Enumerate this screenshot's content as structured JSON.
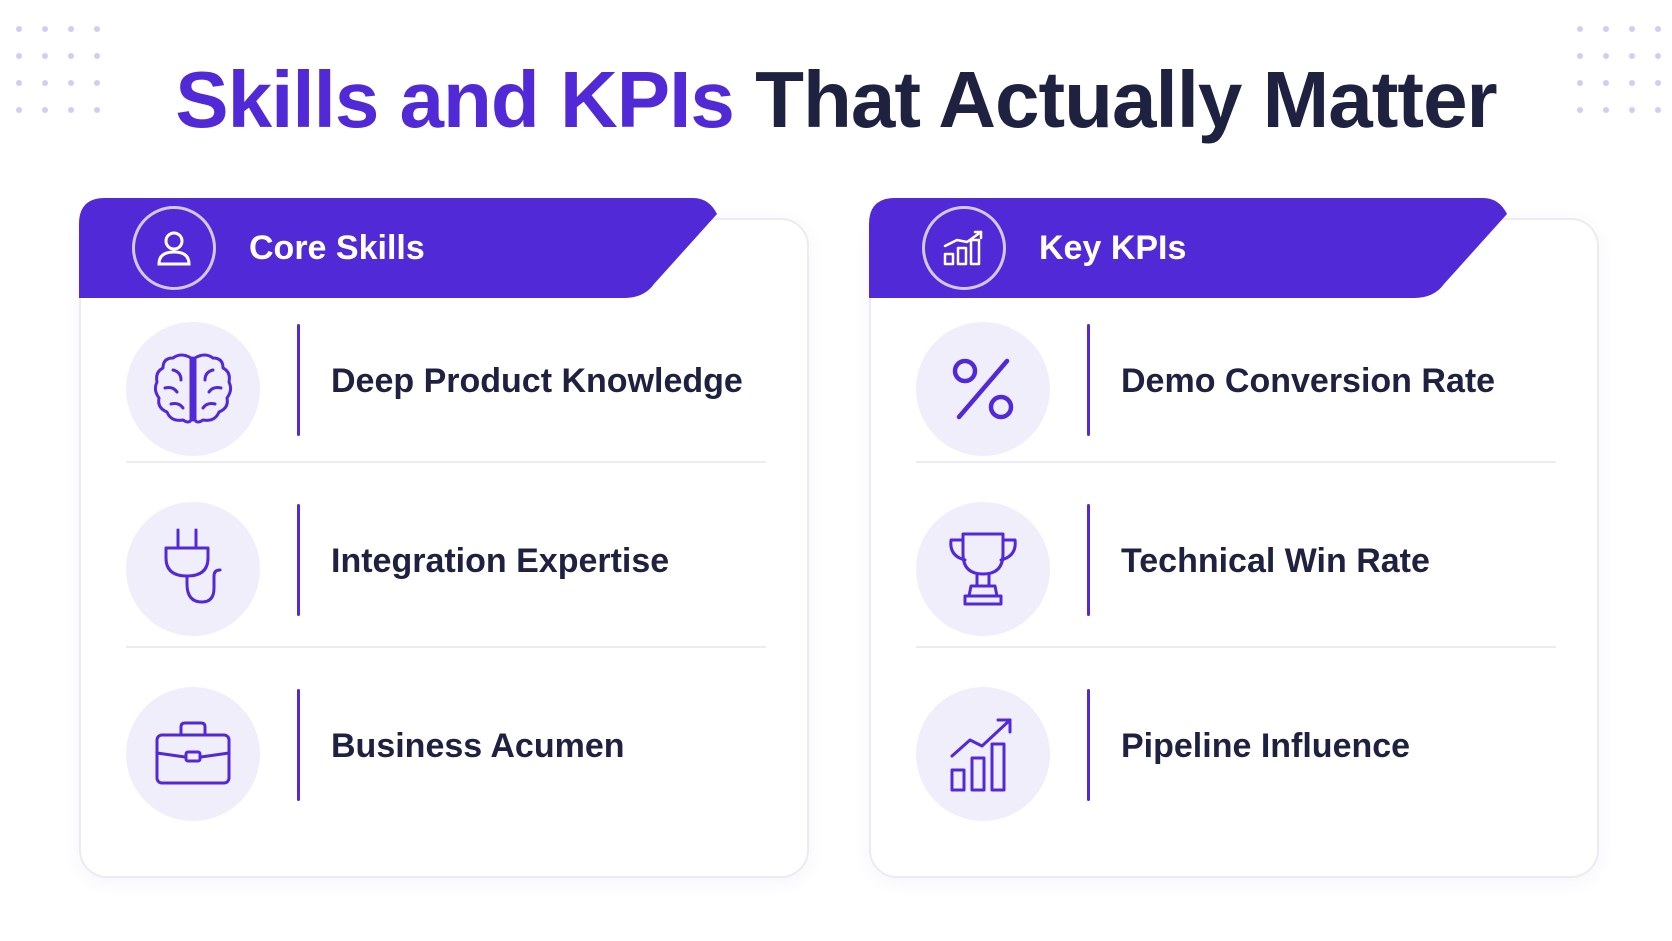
{
  "title": {
    "accent": "Skills and KPIs",
    "rest": " That Actually Matter"
  },
  "colors": {
    "accent": "#5229d6",
    "text": "#1e2240",
    "icon_bg": "#f1eefb"
  },
  "skills": {
    "header": "Core Skills",
    "header_icon": "user-icon",
    "items": [
      {
        "label": "Deep Product Knowledge",
        "icon": "brain-icon"
      },
      {
        "label": "Integration Expertise",
        "icon": "plug-icon"
      },
      {
        "label": "Business Acumen",
        "icon": "briefcase-icon"
      }
    ]
  },
  "kpis": {
    "header": "Key KPIs",
    "header_icon": "bar-chart-icon",
    "items": [
      {
        "label": "Demo Conversion Rate",
        "icon": "percent-icon"
      },
      {
        "label": "Technical Win Rate",
        "icon": "trophy-icon"
      },
      {
        "label": "Pipeline Influence",
        "icon": "growth-chart-icon"
      }
    ]
  }
}
